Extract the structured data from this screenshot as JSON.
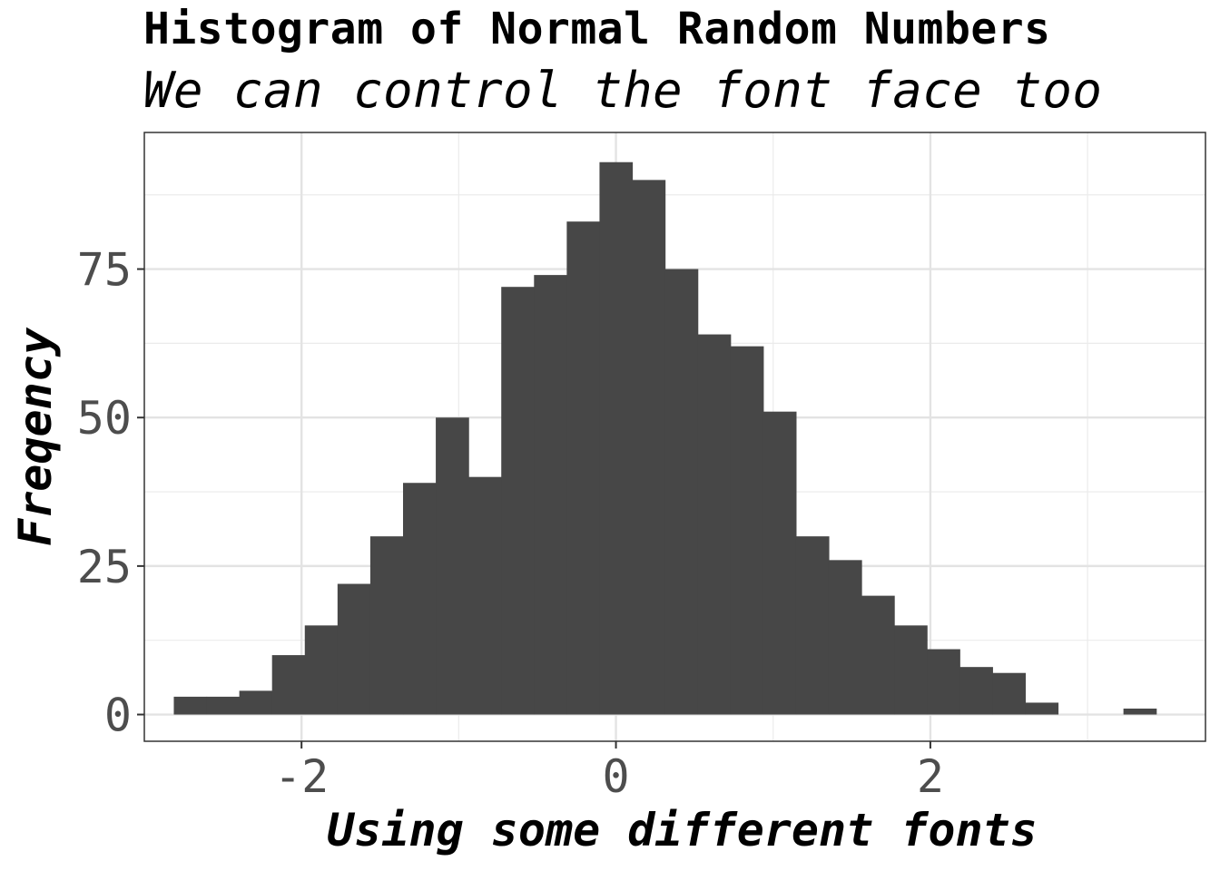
{
  "chart_data": {
    "type": "bar",
    "title": "Histogram of Normal Random Numbers",
    "subtitle": "We can control the font face too",
    "xlabel": "Using some different fonts",
    "ylabel": "Freqency",
    "xlim": [
      -3.0,
      3.75
    ],
    "ylim": [
      -4.5,
      98
    ],
    "x_ticks": [
      -2,
      0,
      2
    ],
    "x_tick_labels": [
      "-2",
      "0",
      "2"
    ],
    "y_ticks": [
      0,
      25,
      50,
      75
    ],
    "y_tick_labels": [
      "0",
      "25",
      "50",
      "75"
    ],
    "grid": true,
    "bin_width": 0.2083,
    "bin_start": -2.8125,
    "values": [
      3,
      3,
      4,
      10,
      15,
      22,
      30,
      39,
      50,
      40,
      72,
      74,
      83,
      93,
      90,
      75,
      64,
      62,
      51,
      30,
      26,
      20,
      15,
      11,
      8,
      7,
      2,
      0,
      0,
      1
    ],
    "bar_color": "#474747"
  }
}
